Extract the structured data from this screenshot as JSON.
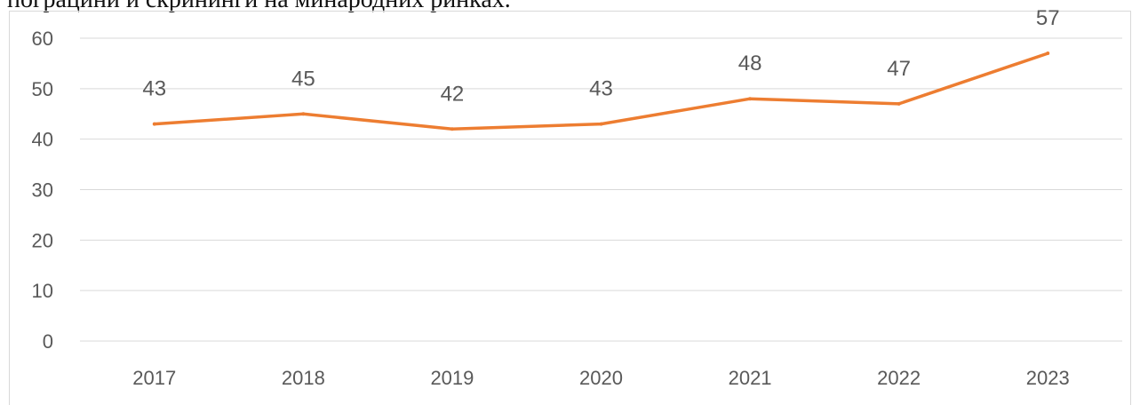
{
  "caption_fragment": "пограцини и скрининги на минародних ринках.",
  "chart_data": {
    "type": "line",
    "title": "",
    "xlabel": "",
    "ylabel": "",
    "categories": [
      "2017",
      "2018",
      "2019",
      "2020",
      "2021",
      "2022",
      "2023"
    ],
    "series": [
      {
        "values": [
          43,
          45,
          42,
          43,
          48,
          47,
          57
        ]
      }
    ],
    "ylim": [
      0,
      60
    ],
    "yticks": [
      0,
      10,
      20,
      30,
      40,
      50,
      60
    ],
    "grid": true,
    "legend": "none",
    "data_labels": true,
    "colors": {
      "line": "#ED7D31",
      "grid": "#D9D9D9",
      "text": "#595959"
    }
  }
}
